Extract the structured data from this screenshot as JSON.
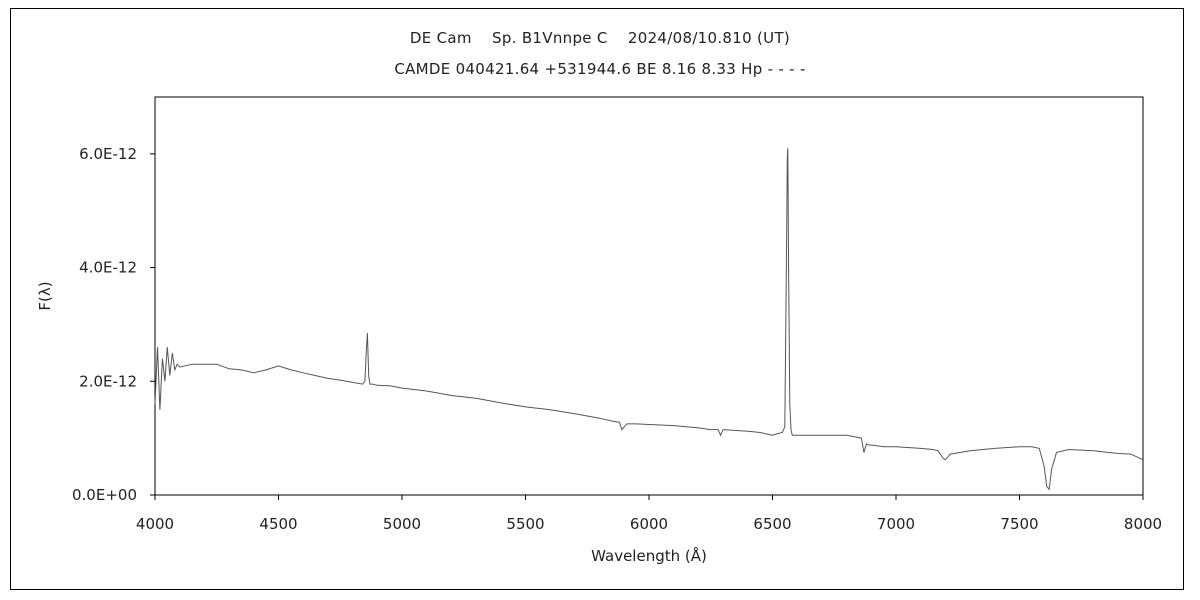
{
  "chart_data": {
    "type": "line",
    "title": "DE Cam    Sp. B1Vnnpe C    2024/08/10.810 (UT)",
    "subtitle": "CAMDE 040421.64 +531944.6 BE 8.16 8.33 Hp - - - -",
    "xlabel": "Wavelength (Å)",
    "ylabel": "F(λ)",
    "xlim": [
      4000,
      8000
    ],
    "ylim": [
      0,
      7e-12
    ],
    "x_ticks": [
      4000,
      4500,
      5000,
      5500,
      6000,
      6500,
      7000,
      7500,
      8000
    ],
    "x_tick_labels": [
      "4000",
      "4500",
      "5000",
      "5500",
      "6000",
      "6500",
      "7000",
      "7500",
      "8000"
    ],
    "y_ticks": [
      0,
      2e-12,
      4e-12,
      6e-12
    ],
    "y_tick_labels": [
      "0.0E+00",
      "2.0E-12",
      "4.0E-12",
      "6.0E-12"
    ],
    "grid": false,
    "line_color": "#555555",
    "series": [
      {
        "x": [
          4000,
          4010,
          4020,
          4030,
          4040,
          4050,
          4060,
          4070,
          4080,
          4090,
          4100,
          4150,
          4200,
          4250,
          4300,
          4350,
          4400,
          4450,
          4500,
          4550,
          4600,
          4650,
          4700,
          4750,
          4800,
          4840,
          4850,
          4855,
          4860,
          4865,
          4870,
          4880,
          4900,
          4950,
          5000,
          5100,
          5200,
          5300,
          5400,
          5500,
          5600,
          5700,
          5800,
          5850,
          5880,
          5890,
          5900,
          5910,
          5950,
          6000,
          6100,
          6200,
          6250,
          6280,
          6290,
          6300,
          6400,
          6450,
          6500,
          6520,
          6540,
          6550,
          6555,
          6560,
          6562,
          6565,
          6570,
          6575,
          6580,
          6600,
          6700,
          6800,
          6860,
          6870,
          6880,
          6890,
          6900,
          6950,
          7000,
          7100,
          7150,
          7170,
          7190,
          7200,
          7220,
          7300,
          7400,
          7500,
          7550,
          7580,
          7600,
          7610,
          7620,
          7630,
          7650,
          7700,
          7800,
          7900,
          7950,
          8000
        ],
        "y": [
          1.6e-12,
          2.6e-12,
          1.5e-12,
          2.4e-12,
          2e-12,
          2.6e-12,
          2.1e-12,
          2.5e-12,
          2.2e-12,
          2.3e-12,
          2.25e-12,
          2.3e-12,
          2.3e-12,
          2.3e-12,
          2.22e-12,
          2.2e-12,
          2.15e-12,
          2.2e-12,
          2.27e-12,
          2.2e-12,
          2.15e-12,
          2.1e-12,
          2.05e-12,
          2.02e-12,
          1.98e-12,
          1.95e-12,
          2e-12,
          2.5e-12,
          2.85e-12,
          2.1e-12,
          1.95e-12,
          1.95e-12,
          1.93e-12,
          1.92e-12,
          1.88e-12,
          1.83e-12,
          1.75e-12,
          1.7e-12,
          1.62e-12,
          1.55e-12,
          1.5e-12,
          1.43e-12,
          1.35e-12,
          1.3e-12,
          1.28e-12,
          1.15e-12,
          1.2e-12,
          1.25e-12,
          1.25e-12,
          1.24e-12,
          1.22e-12,
          1.18e-12,
          1.15e-12,
          1.15e-12,
          1.05e-12,
          1.15e-12,
          1.12e-12,
          1.1e-12,
          1.05e-12,
          1.08e-12,
          1.1e-12,
          1.2e-12,
          3.5e-12,
          5.9e-12,
          6.1e-12,
          4e-12,
          1.6e-12,
          1.15e-12,
          1.05e-12,
          1.05e-12,
          1.05e-12,
          1.05e-12,
          1e-12,
          7.5e-13,
          9e-13,
          8.8e-13,
          8.8e-13,
          8.5e-13,
          8.5e-13,
          8.2e-13,
          8e-13,
          7.8e-13,
          6.5e-13,
          6.2e-13,
          7.2e-13,
          7.8e-13,
          8.2e-13,
          8.5e-13,
          8.5e-13,
          8.2e-13,
          5e-13,
          1.5e-13,
          1e-13,
          4.5e-13,
          7.5e-13,
          8e-13,
          7.8e-13,
          7.3e-13,
          7.2e-13,
          6.2e-13
        ]
      }
    ]
  }
}
